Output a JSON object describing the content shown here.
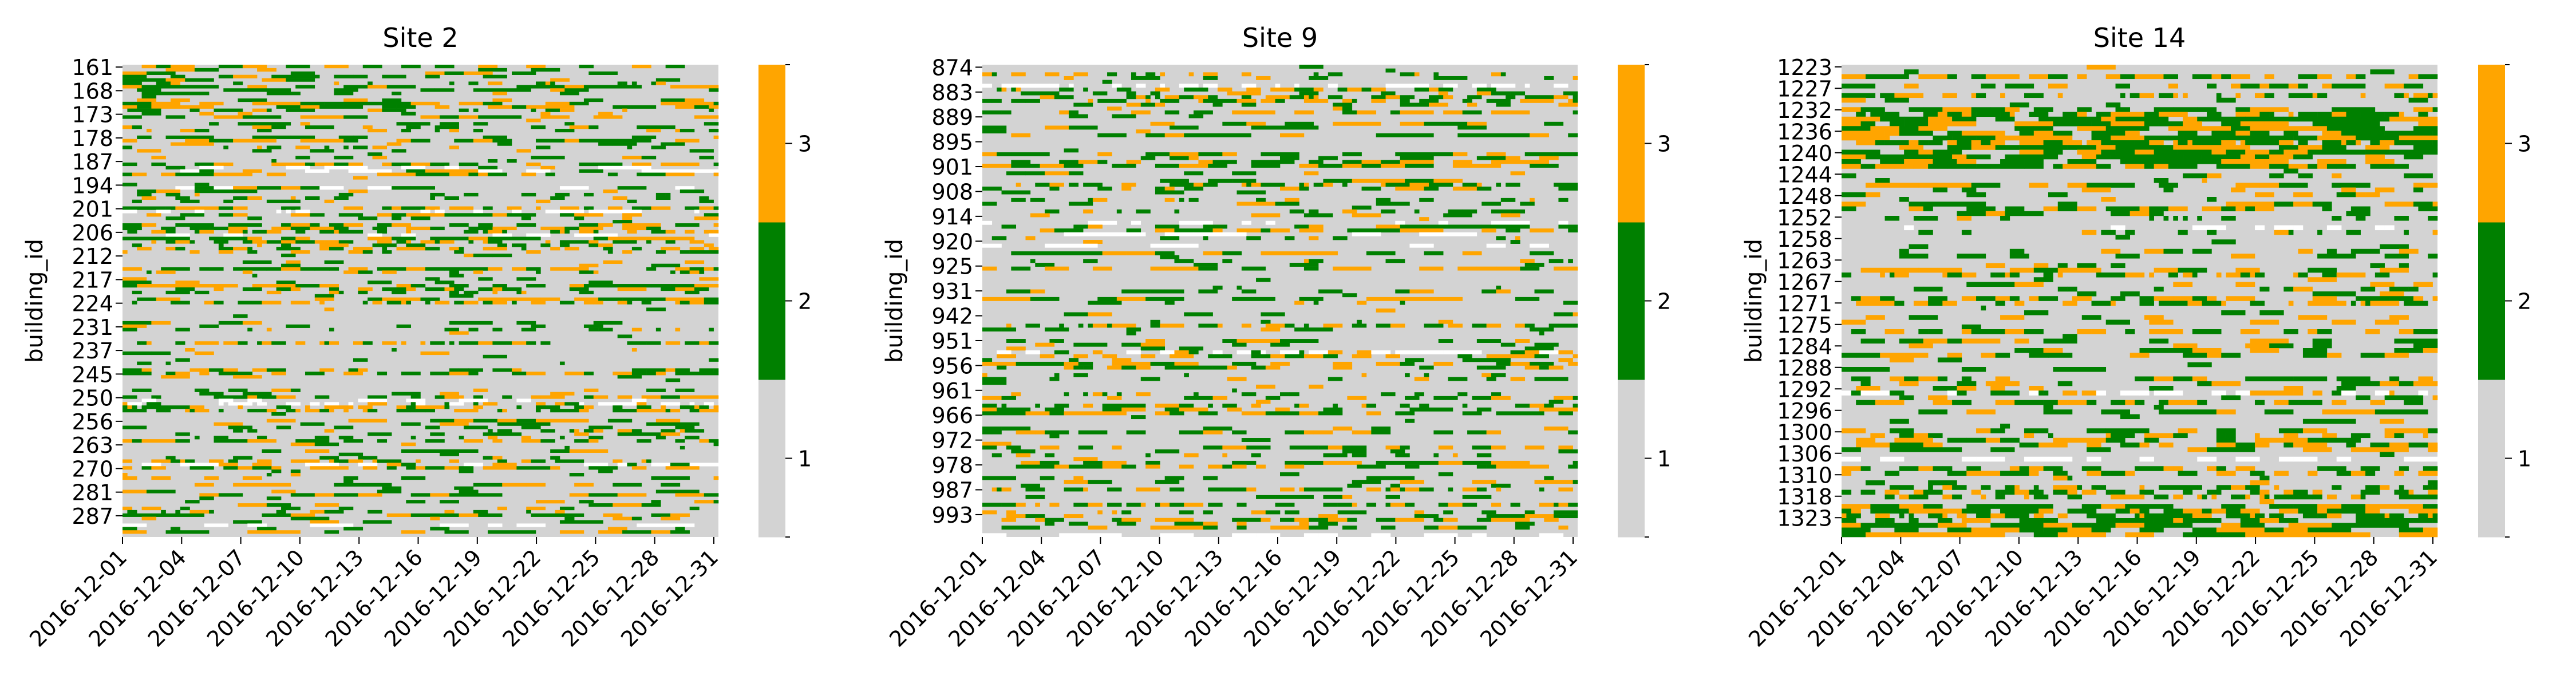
{
  "figure": {
    "colors": {
      "1": "#d3d3d3",
      "2": "#008000",
      "3": "#ffa500"
    },
    "cmap_order": [
      1,
      2,
      3
    ]
  },
  "chart_data": [
    {
      "type": "heatmap",
      "title": "Site 2",
      "ylabel": "building_id",
      "xlabel": "",
      "x_start": "2016-12-01",
      "x_end": "2016-12-31",
      "xticks": [
        "2016-12-01",
        "2016-12-04",
        "2016-12-07",
        "2016-12-10",
        "2016-12-13",
        "2016-12-16",
        "2016-12-19",
        "2016-12-22",
        "2016-12-25",
        "2016-12-28",
        "2016-12-31"
      ],
      "yticks": [
        "161",
        "168",
        "173",
        "178",
        "187",
        "194",
        "201",
        "206",
        "212",
        "217",
        "224",
        "231",
        "237",
        "245",
        "250",
        "256",
        "263",
        "270",
        "281",
        "287"
      ],
      "colorbar": {
        "ticks": [
          "1",
          "2",
          "3"
        ],
        "levels": [
          1,
          2,
          3
        ]
      },
      "rows": 140
    },
    {
      "type": "heatmap",
      "title": "Site 9",
      "ylabel": "building_id",
      "xlabel": "",
      "x_start": "2016-12-01",
      "x_end": "2016-12-31",
      "xticks": [
        "2016-12-01",
        "2016-12-04",
        "2016-12-07",
        "2016-12-10",
        "2016-12-13",
        "2016-12-16",
        "2016-12-19",
        "2016-12-22",
        "2016-12-25",
        "2016-12-28",
        "2016-12-31"
      ],
      "yticks": [
        "874",
        "883",
        "889",
        "895",
        "901",
        "908",
        "914",
        "920",
        "925",
        "931",
        "942",
        "951",
        "956",
        "961",
        "966",
        "972",
        "978",
        "987",
        "993"
      ],
      "colorbar": {
        "ticks": [
          "1",
          "2",
          "3"
        ],
        "levels": [
          1,
          2,
          3
        ]
      },
      "rows": 124
    },
    {
      "type": "heatmap",
      "title": "Site 14",
      "ylabel": "building_id",
      "xlabel": "",
      "x_start": "2016-12-01",
      "x_end": "2016-12-31",
      "xticks": [
        "2016-12-01",
        "2016-12-04",
        "2016-12-07",
        "2016-12-10",
        "2016-12-13",
        "2016-12-16",
        "2016-12-19",
        "2016-12-22",
        "2016-12-25",
        "2016-12-28",
        "2016-12-31"
      ],
      "yticks": [
        "1223",
        "1227",
        "1232",
        "1236",
        "1240",
        "1244",
        "1248",
        "1252",
        "1258",
        "1263",
        "1267",
        "1271",
        "1275",
        "1284",
        "1288",
        "1292",
        "1296",
        "1300",
        "1306",
        "1310",
        "1318",
        "1323"
      ],
      "colorbar": {
        "ticks": [
          "1",
          "2",
          "3"
        ],
        "levels": [
          1,
          2,
          3
        ]
      },
      "rows": 100
    }
  ]
}
